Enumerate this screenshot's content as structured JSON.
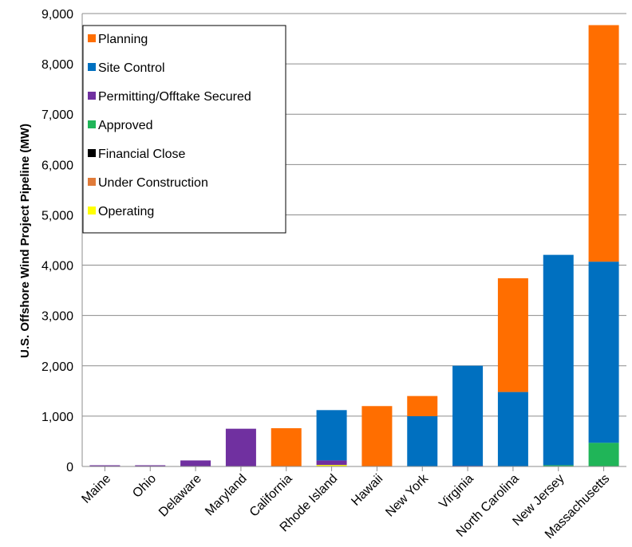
{
  "chart_data": {
    "type": "bar",
    "stacked": true,
    "ylabel": "U.S. Offshore Wind Project Pipeline (MW)",
    "xlabel": "",
    "ylim": [
      0,
      9000
    ],
    "yticks": [
      0,
      1000,
      2000,
      3000,
      4000,
      5000,
      6000,
      7000,
      8000,
      9000
    ],
    "ytick_labels": [
      "0",
      "1,000",
      "2,000",
      "3,000",
      "4,000",
      "5,000",
      "6,000",
      "7,000",
      "8,000",
      "9,000"
    ],
    "grid": true,
    "legend_position": "top-left",
    "categories": [
      "Maine",
      "Ohio",
      "Delaware",
      "Maryland",
      "California",
      "Rhode Island",
      "Hawaii",
      "New York",
      "Virginia",
      "North Carolina",
      "New Jersey",
      "Massachusetts"
    ],
    "series": [
      {
        "name": "Operating",
        "color": "#ffff00",
        "values": [
          0,
          0,
          0,
          0,
          0,
          30,
          0,
          0,
          0,
          0,
          0,
          0
        ]
      },
      {
        "name": "Under Construction",
        "color": "#e07b39",
        "values": [
          0,
          0,
          0,
          0,
          0,
          0,
          0,
          0,
          0,
          0,
          0,
          0
        ]
      },
      {
        "name": "Financial Close",
        "color": "#000000",
        "values": [
          0,
          0,
          0,
          0,
          0,
          0,
          0,
          0,
          0,
          0,
          0,
          0
        ]
      },
      {
        "name": "Approved",
        "color": "#20b558",
        "values": [
          0,
          0,
          0,
          0,
          0,
          0,
          0,
          0,
          0,
          0,
          25,
          470
        ]
      },
      {
        "name": "Permitting/Offtake Secured",
        "color": "#7030a0",
        "values": [
          12,
          20,
          120,
          750,
          0,
          90,
          0,
          0,
          12,
          0,
          0,
          0
        ]
      },
      {
        "name": "Site Control",
        "color": "#0070c0",
        "values": [
          0,
          0,
          0,
          0,
          0,
          1000,
          0,
          1000,
          1990,
          1480,
          4180,
          3600
        ]
      },
      {
        "name": "Planning",
        "color": "#ff6e00",
        "values": [
          0,
          0,
          0,
          0,
          760,
          0,
          1200,
          400,
          0,
          2260,
          0,
          4700
        ]
      }
    ],
    "legend_order": [
      "Planning",
      "Site Control",
      "Permitting/Offtake Secured",
      "Approved",
      "Financial Close",
      "Under Construction",
      "Operating"
    ]
  }
}
